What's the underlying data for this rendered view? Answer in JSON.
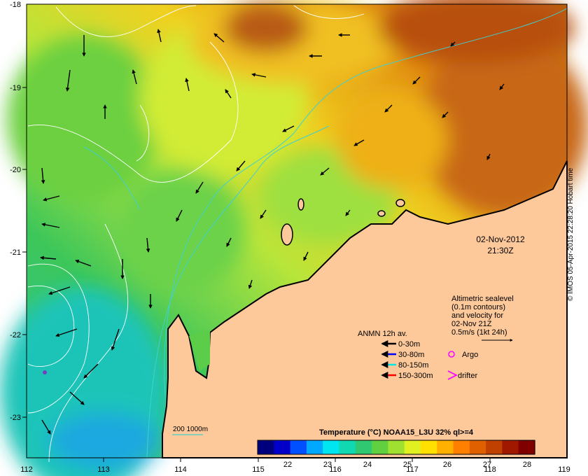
{
  "axes": {
    "x_ticks": [
      "112",
      "113",
      "114",
      "115",
      "116",
      "117",
      "118",
      "119"
    ],
    "y_ticks": [
      "-18",
      "-19",
      "-20",
      "-21",
      "-22",
      "-23"
    ]
  },
  "timestamp": {
    "date": "02-Nov-2012",
    "time": "21:30Z"
  },
  "altimetry_note": {
    "lines": [
      "Altimetric sealevel",
      "(0.1m contours)",
      "and velocity for",
      "02-Nov 21Z"
    ],
    "scale_label": "0.5m/s (1kt 24h)"
  },
  "anmn_legend": {
    "title": "ANMN 12h av.",
    "items": [
      {
        "label": "0-30m",
        "color": "#000000"
      },
      {
        "label": "30-80m",
        "color": "#0000ff"
      },
      {
        "label": "80-150m",
        "color": "#00e5e5"
      },
      {
        "label": "150-300m",
        "color": "#ff0000"
      }
    ]
  },
  "markers": {
    "argo_label": "Argo",
    "argo_color": "#ff00ff",
    "drifter_label": "drifter",
    "drifter_color": "#ff00ff"
  },
  "bathymetry_label": "200  1000m",
  "colorbar": {
    "title": "Temperature (°C) NOAA15_L3U 32% ql>=4",
    "ticks": [
      "22",
      "23",
      "24",
      "25",
      "26",
      "27",
      "28"
    ],
    "colors": [
      "#00007f",
      "#0000c8",
      "#0050ff",
      "#00a8ff",
      "#00e6f0",
      "#10d8b0",
      "#30c870",
      "#60d040",
      "#a0e030",
      "#e0f020",
      "#ffe000",
      "#ffb000",
      "#ff8000",
      "#e06000",
      "#c04000",
      "#a01800",
      "#800000"
    ]
  },
  "credit": "© IMOS 05-Apr-2015 22:28:20 Hobart time",
  "colors": {
    "land": "#fdc99b",
    "coast": "#000000",
    "bathy": "#40d0d0",
    "sealevel_contour": "#ffffff"
  }
}
